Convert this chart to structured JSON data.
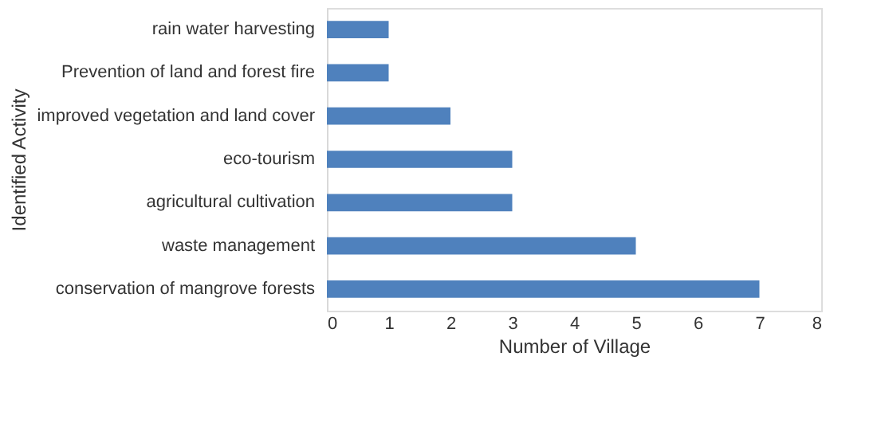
{
  "chart_data": {
    "type": "bar",
    "orientation": "horizontal",
    "xlabel": "Number of Village",
    "ylabel": "Identified Activity",
    "categories": [
      "rain water harvesting",
      "Prevention of land and forest fire",
      "improved vegetation and land cover",
      "eco-tourism",
      "agricultural cultivation",
      "waste management",
      "conservation of mangrove forests"
    ],
    "values": [
      1,
      1,
      2,
      3,
      3,
      5,
      7
    ],
    "color": "#4f81bd",
    "xlim": [
      0,
      8
    ],
    "xticks": [
      0,
      1,
      2,
      3,
      4,
      5,
      6,
      7,
      8
    ],
    "grid": false
  }
}
